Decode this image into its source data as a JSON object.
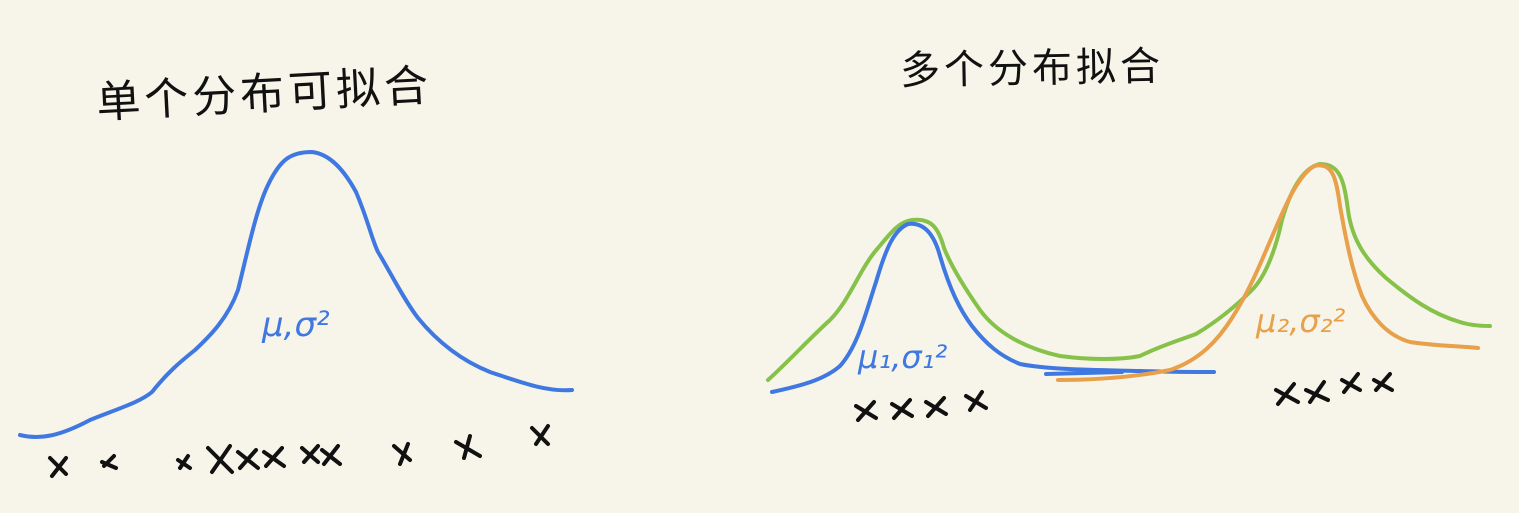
{
  "colors": {
    "background": "#f7f5ea",
    "ink": "#111111",
    "blue": "#3f78e0",
    "green": "#86c24a",
    "orange": "#e8a04a"
  },
  "left_panel": {
    "title": "单个分布可拟合",
    "param_label": "μ,σ²"
  },
  "right_panel": {
    "title": "多个分布拟合",
    "param_label_1": "μ₁,σ₁²",
    "param_label_2": "μ₂,σ₂²"
  }
}
